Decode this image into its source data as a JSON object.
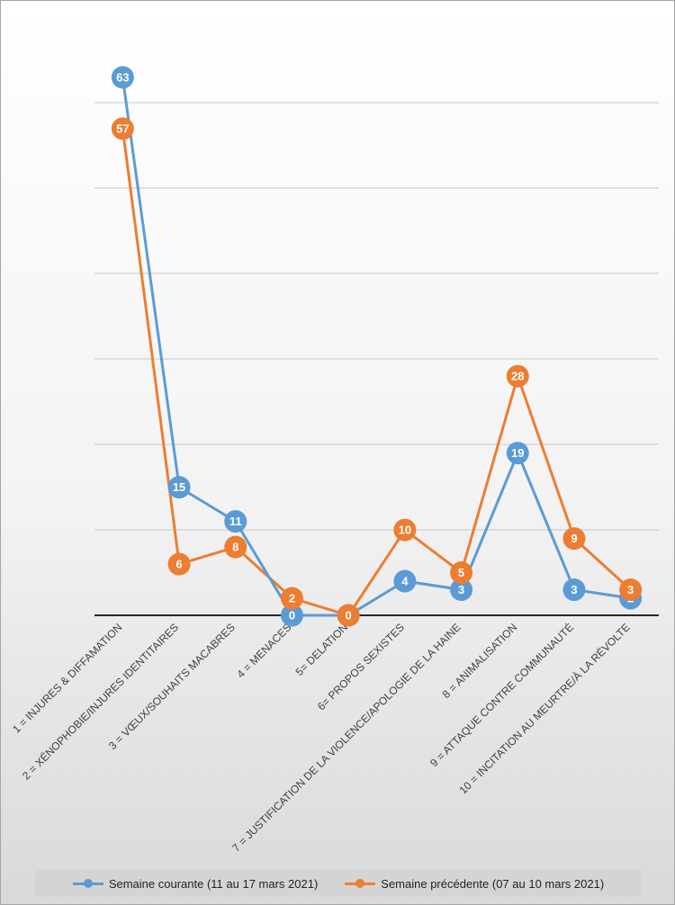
{
  "chart_data": {
    "type": "line",
    "title": "",
    "xlabel": "",
    "ylabel": "",
    "ylim": [
      0,
      63
    ],
    "grid": true,
    "legend": "bottom",
    "categories": [
      "1 = INJURES & DIFFAMATION",
      "2 = XÉNOPHOBIE/INJURES IDENTITAIRES",
      "3 = VŒUX/SOUHAITS MACABRES",
      "4 = MENACES",
      "5= DELATION",
      "6= PROPOS SEXISTES",
      "7 = JUSTIFICATION DE LA VIOLENCE/APOLOGIE DE LA HAINE",
      "8 = ANIMALISATION",
      "9 = ATTAQUE CONTRE COMMUNAUTÉ",
      "10 = INCITATION AU MEURTRE/À LA RÉVOLTE"
    ],
    "series": [
      {
        "name": "Semaine courante (11 au 17 mars 2021)",
        "color": "#5b9bd5",
        "values": [
          63,
          15,
          11,
          0,
          0,
          4,
          3,
          19,
          3,
          2
        ]
      },
      {
        "name": "Semaine précédente (07 au 10 mars 2021)",
        "color": "#ed7d31",
        "values": [
          57,
          6,
          8,
          2,
          0,
          10,
          5,
          28,
          9,
          3
        ]
      }
    ]
  },
  "legend": {
    "items": [
      {
        "label": "Semaine courante (11 au 17 mars 2021)",
        "color": "#5b9bd5"
      },
      {
        "label": "Semaine précédente (07 au 10 mars 2021)",
        "color": "#ed7d31"
      }
    ]
  }
}
